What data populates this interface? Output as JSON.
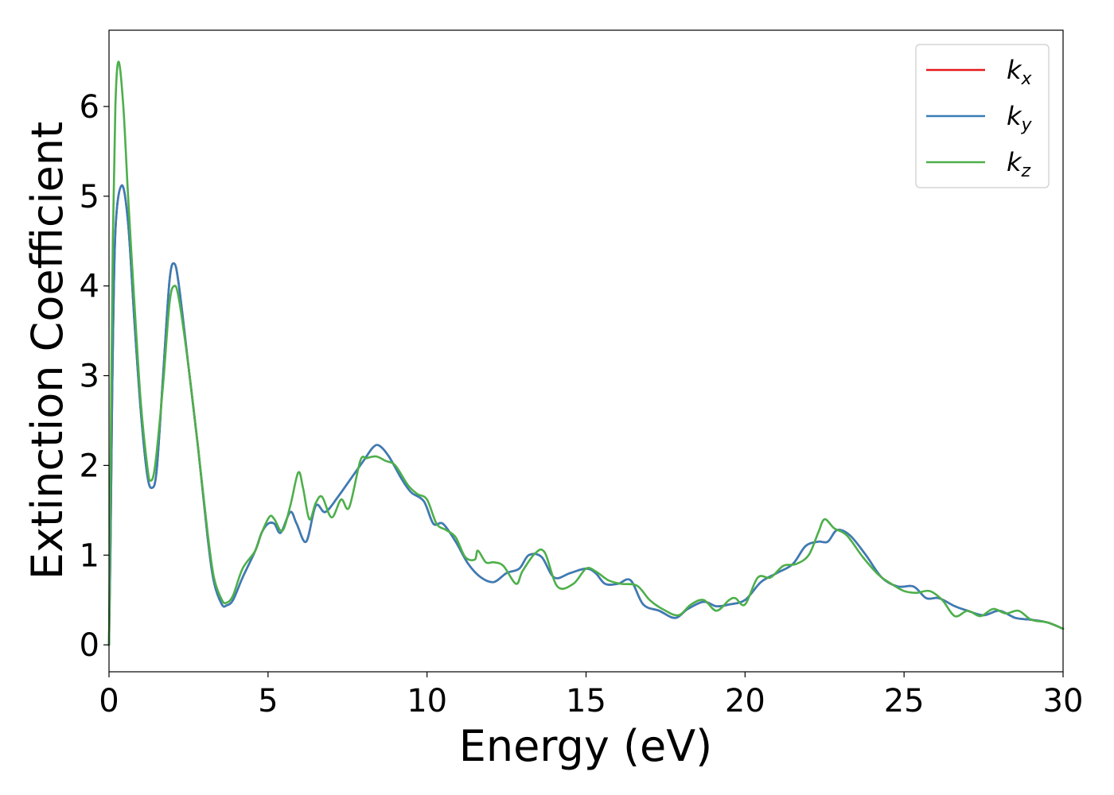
{
  "chart_data": {
    "type": "line",
    "xlabel": "Energy (eV)",
    "ylabel": "Extinction Coefficient",
    "xlim": [
      0,
      30
    ],
    "ylim": [
      -0.3,
      6.85
    ],
    "xticks": [
      0,
      5,
      10,
      15,
      20,
      25,
      30
    ],
    "yticks": [
      0,
      1,
      2,
      3,
      4,
      5,
      6
    ],
    "grid": false,
    "legend_position": "top-right",
    "series": [
      {
        "name": "k",
        "subscript": "x",
        "color": "#e41a1c",
        "points": [
          [
            0,
            0
          ],
          [
            0.05,
            1.2
          ],
          [
            0.1,
            2.8
          ],
          [
            0.2,
            4.6
          ],
          [
            0.4,
            5.12
          ],
          [
            0.6,
            4.7
          ],
          [
            0.8,
            3.6
          ],
          [
            1.0,
            2.6
          ],
          [
            1.2,
            1.9
          ],
          [
            1.35,
            1.75
          ],
          [
            1.5,
            1.95
          ],
          [
            1.7,
            3.0
          ],
          [
            1.9,
            4.05
          ],
          [
            2.05,
            4.25
          ],
          [
            2.2,
            4.0
          ],
          [
            2.5,
            3.1
          ],
          [
            2.8,
            2.2
          ],
          [
            3.1,
            1.2
          ],
          [
            3.3,
            0.7
          ],
          [
            3.55,
            0.45
          ],
          [
            3.7,
            0.44
          ],
          [
            3.9,
            0.5
          ],
          [
            4.2,
            0.75
          ],
          [
            4.6,
            1.05
          ],
          [
            4.8,
            1.25
          ],
          [
            5.0,
            1.35
          ],
          [
            5.2,
            1.35
          ],
          [
            5.4,
            1.25
          ],
          [
            5.7,
            1.48
          ],
          [
            5.9,
            1.35
          ],
          [
            6.2,
            1.15
          ],
          [
            6.5,
            1.55
          ],
          [
            6.8,
            1.48
          ],
          [
            7.2,
            1.65
          ],
          [
            7.6,
            1.85
          ],
          [
            8.0,
            2.05
          ],
          [
            8.3,
            2.2
          ],
          [
            8.5,
            2.22
          ],
          [
            8.8,
            2.1
          ],
          [
            9.2,
            1.85
          ],
          [
            9.5,
            1.7
          ],
          [
            9.9,
            1.6
          ],
          [
            10.2,
            1.35
          ],
          [
            10.5,
            1.35
          ],
          [
            10.9,
            1.15
          ],
          [
            11.3,
            0.9
          ],
          [
            11.7,
            0.75
          ],
          [
            12.1,
            0.7
          ],
          [
            12.5,
            0.8
          ],
          [
            12.9,
            0.85
          ],
          [
            13.2,
            1.0
          ],
          [
            13.6,
            0.98
          ],
          [
            14.0,
            0.75
          ],
          [
            14.5,
            0.8
          ],
          [
            15.0,
            0.85
          ],
          [
            15.3,
            0.8
          ],
          [
            15.6,
            0.68
          ],
          [
            16.0,
            0.68
          ],
          [
            16.4,
            0.72
          ],
          [
            16.8,
            0.45
          ],
          [
            17.3,
            0.38
          ],
          [
            17.8,
            0.3
          ],
          [
            18.2,
            0.4
          ],
          [
            18.7,
            0.48
          ],
          [
            19.1,
            0.43
          ],
          [
            19.5,
            0.45
          ],
          [
            20.0,
            0.5
          ],
          [
            20.5,
            0.7
          ],
          [
            21.0,
            0.8
          ],
          [
            21.5,
            0.9
          ],
          [
            21.9,
            1.1
          ],
          [
            22.3,
            1.15
          ],
          [
            22.6,
            1.15
          ],
          [
            22.9,
            1.28
          ],
          [
            23.3,
            1.22
          ],
          [
            23.8,
            1.0
          ],
          [
            24.3,
            0.75
          ],
          [
            24.8,
            0.65
          ],
          [
            25.3,
            0.65
          ],
          [
            25.7,
            0.52
          ],
          [
            26.1,
            0.52
          ],
          [
            26.6,
            0.43
          ],
          [
            27.0,
            0.38
          ],
          [
            27.5,
            0.33
          ],
          [
            28.0,
            0.38
          ],
          [
            28.5,
            0.3
          ],
          [
            29.0,
            0.28
          ],
          [
            29.5,
            0.25
          ],
          [
            30.0,
            0.18
          ]
        ]
      },
      {
        "name": "k",
        "subscript": "y",
        "color": "#377eb8",
        "points": [
          [
            0,
            0
          ],
          [
            0.05,
            1.2
          ],
          [
            0.1,
            2.8
          ],
          [
            0.2,
            4.6
          ],
          [
            0.4,
            5.12
          ],
          [
            0.6,
            4.7
          ],
          [
            0.8,
            3.6
          ],
          [
            1.0,
            2.6
          ],
          [
            1.2,
            1.9
          ],
          [
            1.35,
            1.75
          ],
          [
            1.5,
            1.95
          ],
          [
            1.7,
            3.0
          ],
          [
            1.9,
            4.05
          ],
          [
            2.05,
            4.25
          ],
          [
            2.2,
            4.0
          ],
          [
            2.5,
            3.1
          ],
          [
            2.8,
            2.2
          ],
          [
            3.1,
            1.2
          ],
          [
            3.3,
            0.7
          ],
          [
            3.55,
            0.45
          ],
          [
            3.7,
            0.44
          ],
          [
            3.9,
            0.5
          ],
          [
            4.2,
            0.75
          ],
          [
            4.6,
            1.05
          ],
          [
            4.8,
            1.25
          ],
          [
            5.0,
            1.35
          ],
          [
            5.2,
            1.35
          ],
          [
            5.4,
            1.25
          ],
          [
            5.7,
            1.48
          ],
          [
            5.9,
            1.35
          ],
          [
            6.2,
            1.15
          ],
          [
            6.5,
            1.55
          ],
          [
            6.8,
            1.48
          ],
          [
            7.2,
            1.65
          ],
          [
            7.6,
            1.85
          ],
          [
            8.0,
            2.05
          ],
          [
            8.3,
            2.2
          ],
          [
            8.5,
            2.22
          ],
          [
            8.8,
            2.1
          ],
          [
            9.2,
            1.85
          ],
          [
            9.5,
            1.7
          ],
          [
            9.9,
            1.6
          ],
          [
            10.2,
            1.35
          ],
          [
            10.5,
            1.35
          ],
          [
            10.9,
            1.15
          ],
          [
            11.3,
            0.9
          ],
          [
            11.7,
            0.75
          ],
          [
            12.1,
            0.7
          ],
          [
            12.5,
            0.8
          ],
          [
            12.9,
            0.85
          ],
          [
            13.2,
            1.0
          ],
          [
            13.6,
            0.98
          ],
          [
            14.0,
            0.75
          ],
          [
            14.5,
            0.8
          ],
          [
            15.0,
            0.85
          ],
          [
            15.3,
            0.8
          ],
          [
            15.6,
            0.68
          ],
          [
            16.0,
            0.68
          ],
          [
            16.4,
            0.72
          ],
          [
            16.8,
            0.45
          ],
          [
            17.3,
            0.38
          ],
          [
            17.8,
            0.3
          ],
          [
            18.2,
            0.4
          ],
          [
            18.7,
            0.48
          ],
          [
            19.1,
            0.43
          ],
          [
            19.5,
            0.45
          ],
          [
            20.0,
            0.5
          ],
          [
            20.5,
            0.7
          ],
          [
            21.0,
            0.8
          ],
          [
            21.5,
            0.9
          ],
          [
            21.9,
            1.1
          ],
          [
            22.3,
            1.15
          ],
          [
            22.6,
            1.15
          ],
          [
            22.9,
            1.28
          ],
          [
            23.3,
            1.22
          ],
          [
            23.8,
            1.0
          ],
          [
            24.3,
            0.75
          ],
          [
            24.8,
            0.65
          ],
          [
            25.3,
            0.65
          ],
          [
            25.7,
            0.52
          ],
          [
            26.1,
            0.52
          ],
          [
            26.6,
            0.43
          ],
          [
            27.0,
            0.38
          ],
          [
            27.5,
            0.33
          ],
          [
            28.0,
            0.38
          ],
          [
            28.5,
            0.3
          ],
          [
            29.0,
            0.28
          ],
          [
            29.5,
            0.25
          ],
          [
            30.0,
            0.18
          ]
        ]
      },
      {
        "name": "k",
        "subscript": "z",
        "color": "#4daf4a",
        "points": [
          [
            0,
            0
          ],
          [
            0.05,
            2.0
          ],
          [
            0.12,
            4.5
          ],
          [
            0.2,
            6.0
          ],
          [
            0.3,
            6.5
          ],
          [
            0.45,
            6.0
          ],
          [
            0.6,
            5.0
          ],
          [
            0.8,
            3.8
          ],
          [
            1.0,
            2.7
          ],
          [
            1.2,
            2.0
          ],
          [
            1.3,
            1.83
          ],
          [
            1.45,
            2.0
          ],
          [
            1.7,
            2.9
          ],
          [
            1.9,
            3.8
          ],
          [
            2.05,
            4.0
          ],
          [
            2.2,
            3.85
          ],
          [
            2.5,
            3.1
          ],
          [
            2.8,
            2.2
          ],
          [
            3.1,
            1.25
          ],
          [
            3.3,
            0.75
          ],
          [
            3.55,
            0.5
          ],
          [
            3.7,
            0.47
          ],
          [
            3.9,
            0.55
          ],
          [
            4.2,
            0.85
          ],
          [
            4.6,
            1.05
          ],
          [
            4.8,
            1.25
          ],
          [
            5.05,
            1.43
          ],
          [
            5.2,
            1.4
          ],
          [
            5.45,
            1.27
          ],
          [
            5.7,
            1.55
          ],
          [
            5.95,
            1.92
          ],
          [
            6.1,
            1.75
          ],
          [
            6.3,
            1.4
          ],
          [
            6.5,
            1.58
          ],
          [
            6.7,
            1.65
          ],
          [
            7.0,
            1.42
          ],
          [
            7.3,
            1.62
          ],
          [
            7.55,
            1.53
          ],
          [
            7.9,
            2.05
          ],
          [
            8.1,
            2.08
          ],
          [
            8.4,
            2.1
          ],
          [
            8.7,
            2.05
          ],
          [
            9.0,
            2.0
          ],
          [
            9.4,
            1.78
          ],
          [
            9.7,
            1.68
          ],
          [
            10.0,
            1.62
          ],
          [
            10.3,
            1.35
          ],
          [
            10.6,
            1.28
          ],
          [
            10.9,
            1.2
          ],
          [
            11.2,
            0.98
          ],
          [
            11.5,
            0.95
          ],
          [
            11.6,
            1.05
          ],
          [
            11.85,
            0.92
          ],
          [
            12.1,
            0.92
          ],
          [
            12.4,
            0.88
          ],
          [
            12.8,
            0.68
          ],
          [
            13.0,
            0.82
          ],
          [
            13.4,
            1.02
          ],
          [
            13.7,
            1.03
          ],
          [
            14.1,
            0.65
          ],
          [
            14.6,
            0.68
          ],
          [
            15.0,
            0.85
          ],
          [
            15.3,
            0.82
          ],
          [
            15.7,
            0.72
          ],
          [
            16.1,
            0.68
          ],
          [
            16.6,
            0.66
          ],
          [
            17.0,
            0.5
          ],
          [
            17.4,
            0.4
          ],
          [
            17.9,
            0.33
          ],
          [
            18.3,
            0.45
          ],
          [
            18.7,
            0.5
          ],
          [
            19.1,
            0.38
          ],
          [
            19.5,
            0.5
          ],
          [
            19.7,
            0.52
          ],
          [
            20.0,
            0.45
          ],
          [
            20.4,
            0.75
          ],
          [
            20.8,
            0.75
          ],
          [
            21.2,
            0.88
          ],
          [
            21.6,
            0.9
          ],
          [
            22.0,
            1.0
          ],
          [
            22.3,
            1.25
          ],
          [
            22.5,
            1.4
          ],
          [
            22.8,
            1.3
          ],
          [
            23.2,
            1.22
          ],
          [
            23.7,
            0.98
          ],
          [
            24.2,
            0.78
          ],
          [
            24.6,
            0.68
          ],
          [
            25.0,
            0.6
          ],
          [
            25.4,
            0.58
          ],
          [
            25.8,
            0.6
          ],
          [
            26.2,
            0.5
          ],
          [
            26.6,
            0.32
          ],
          [
            27.0,
            0.38
          ],
          [
            27.4,
            0.32
          ],
          [
            27.8,
            0.4
          ],
          [
            28.2,
            0.35
          ],
          [
            28.6,
            0.38
          ],
          [
            29.0,
            0.28
          ],
          [
            29.5,
            0.25
          ],
          [
            30.0,
            0.18
          ]
        ]
      }
    ]
  }
}
